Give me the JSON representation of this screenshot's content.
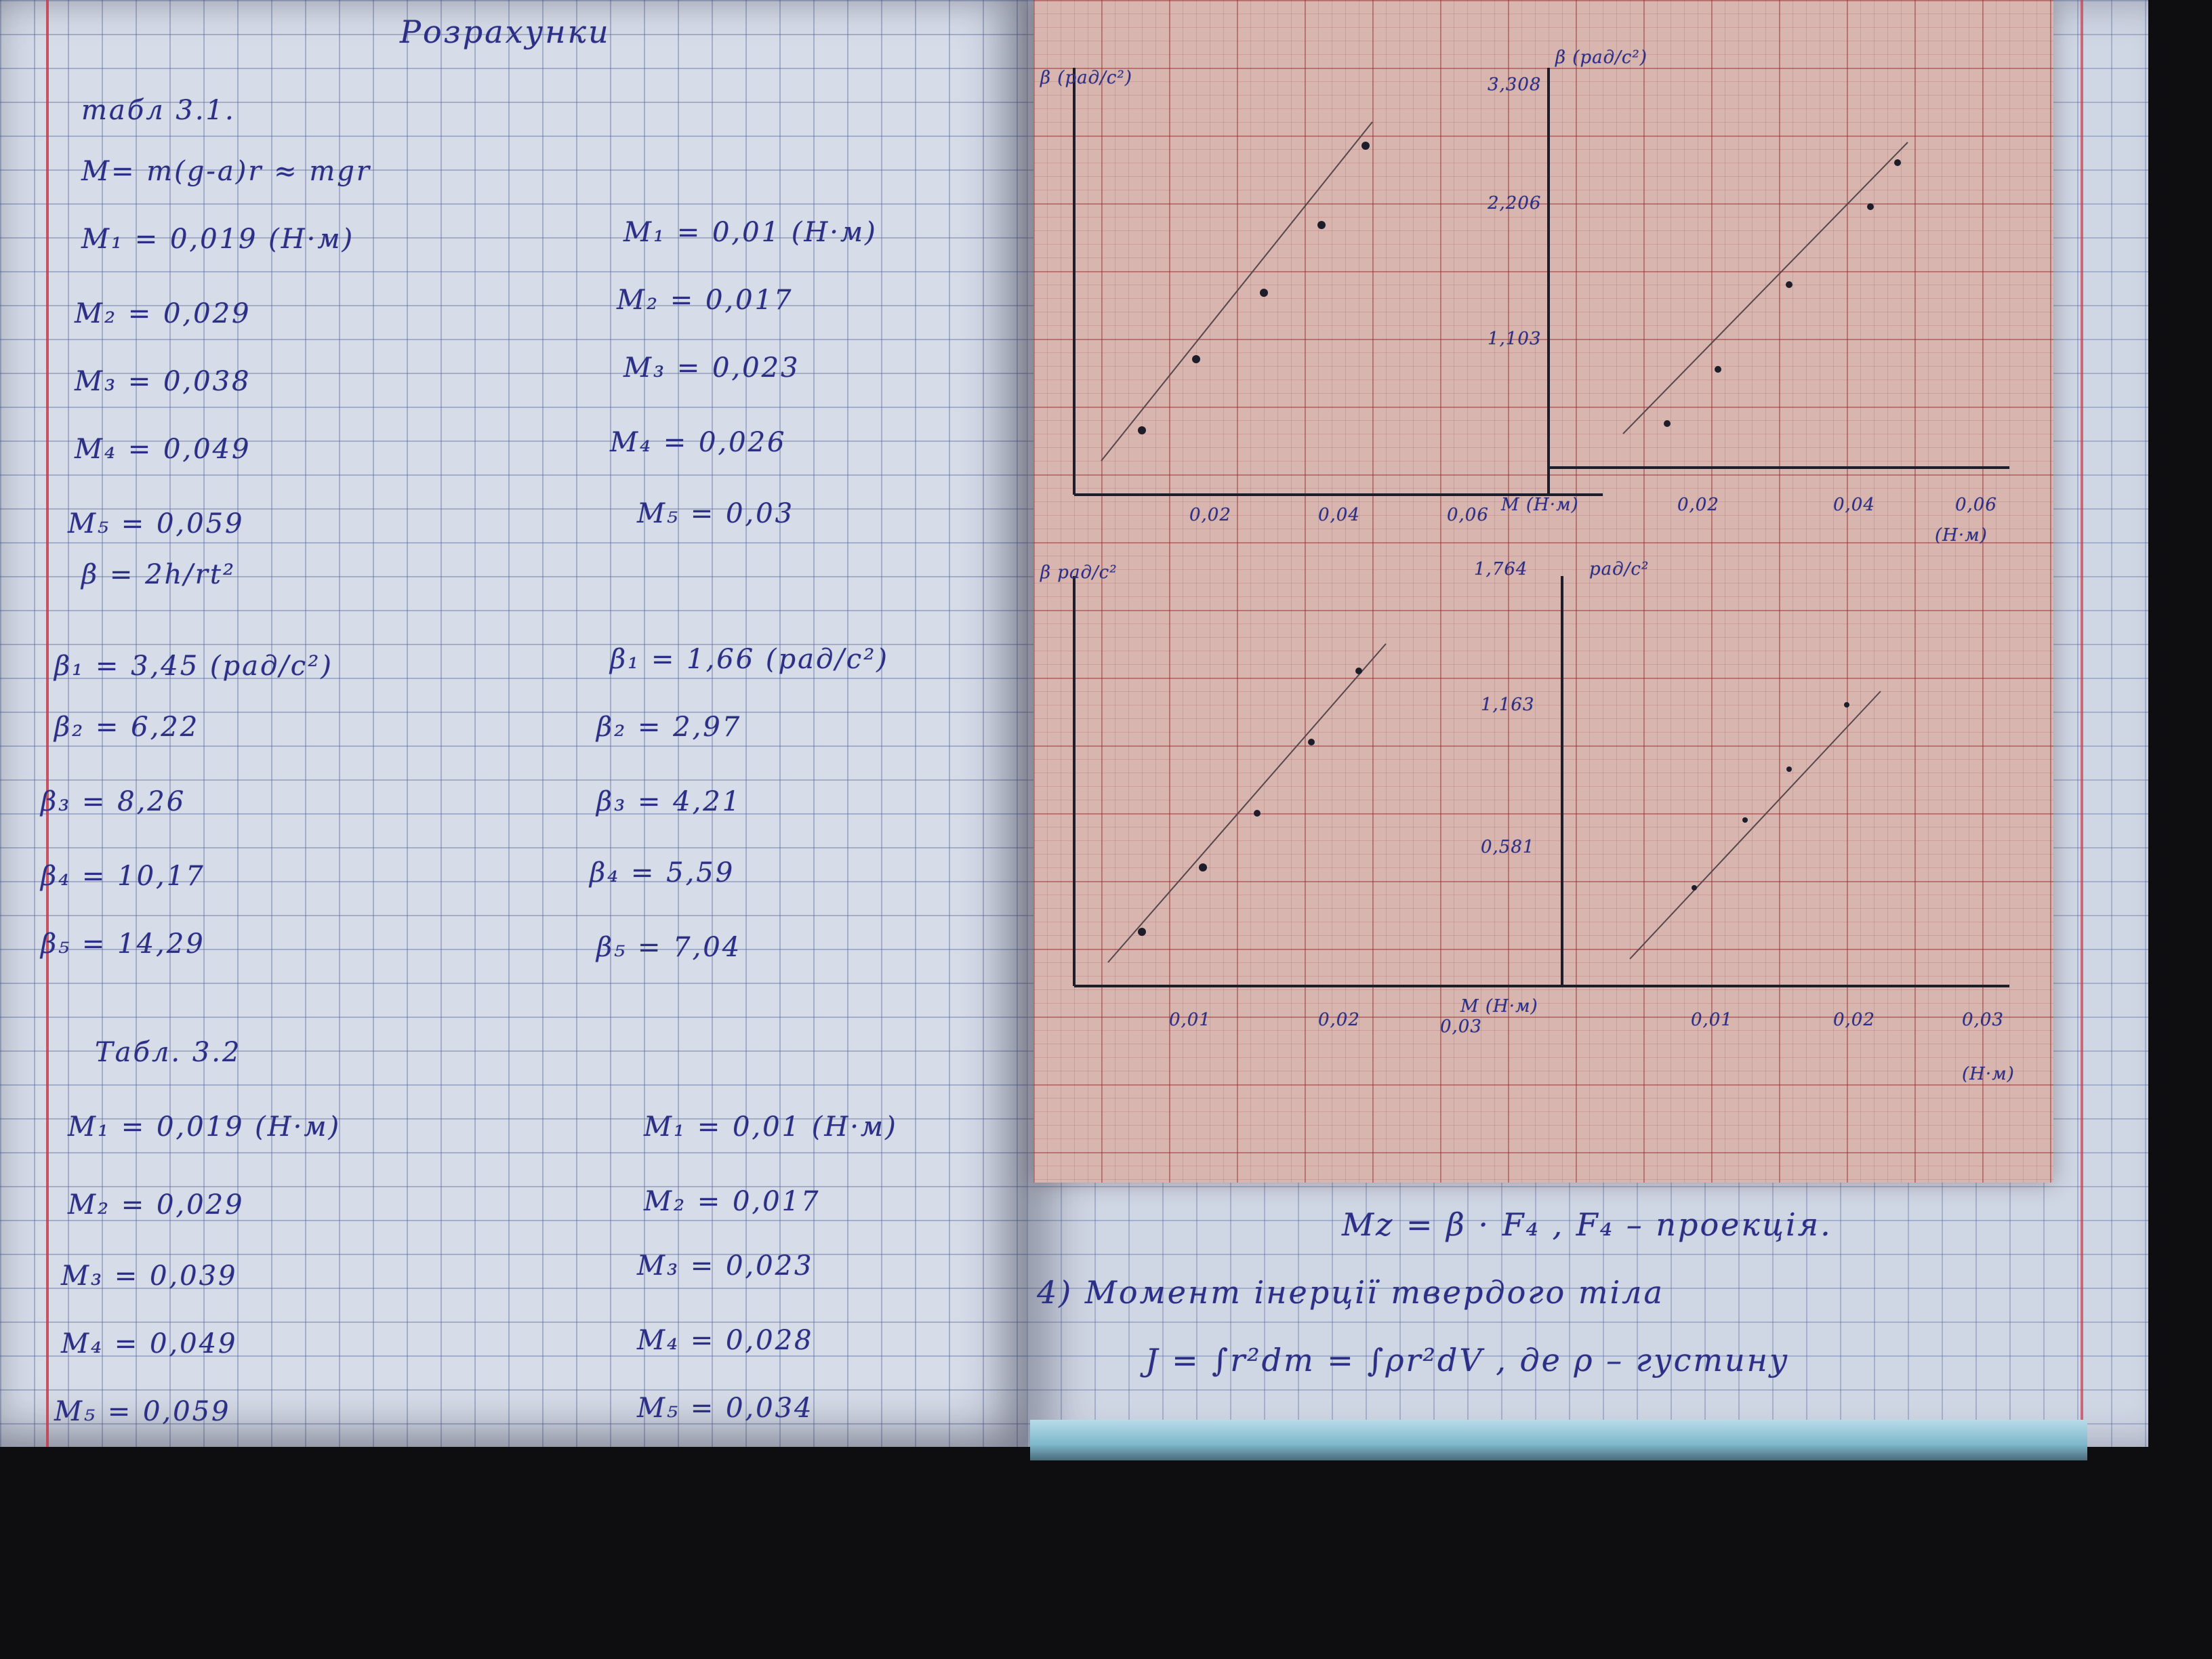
{
  "left_page": {
    "heading": "Розрахунки",
    "table1": {
      "label": "табл 3.1.",
      "formula": "M= m(g-a)r ≈ mgr",
      "col1": [
        {
          "name": "M₁",
          "value": "0,019 (Н·м)"
        },
        {
          "name": "M₂",
          "value": "0,029"
        },
        {
          "name": "M₃",
          "value": "0,038"
        },
        {
          "name": "M₄",
          "value": "0,049"
        },
        {
          "name": "M₅",
          "value": "0,059"
        }
      ],
      "col2": [
        {
          "name": "M₁",
          "value": "0,01 (Н·м)"
        },
        {
          "name": "M₂",
          "value": "0,017"
        },
        {
          "name": "M₃",
          "value": "0,023"
        },
        {
          "name": "M₄",
          "value": "0,026"
        },
        {
          "name": "M₅",
          "value": "0,03"
        }
      ],
      "beta_formula": "β = 2h/rt²",
      "beta_col1": [
        {
          "name": "β₁",
          "value": "3,45 (рад/с²)"
        },
        {
          "name": "β₂",
          "value": "6,22"
        },
        {
          "name": "β₃",
          "value": "8,26"
        },
        {
          "name": "β₄",
          "value": "10,17"
        },
        {
          "name": "β₅",
          "value": "14,29"
        }
      ],
      "beta_col2": [
        {
          "name": "β₁",
          "value": "1,66 (рад/с²)"
        },
        {
          "name": "β₂",
          "value": "2,97"
        },
        {
          "name": "β₃",
          "value": "4,21"
        },
        {
          "name": "β₄",
          "value": "5,59"
        },
        {
          "name": "β₅",
          "value": "7,04"
        }
      ]
    },
    "table2": {
      "label": "Табл. 3.2",
      "col1": [
        {
          "name": "M₁",
          "value": "0,019 (Н·м)"
        },
        {
          "name": "M₂",
          "value": "0,029"
        },
        {
          "name": "M₃",
          "value": "0,039"
        },
        {
          "name": "M₄",
          "value": "0,049"
        },
        {
          "name": "M₅",
          "value": "0,059"
        }
      ],
      "col2": [
        {
          "name": "M₁",
          "value": "0,01 (Н·м)"
        },
        {
          "name": "M₂",
          "value": "0,017"
        },
        {
          "name": "M₃",
          "value": "0,023"
        },
        {
          "name": "M₄",
          "value": "0,028"
        },
        {
          "name": "M₅",
          "value": "0,034"
        }
      ]
    }
  },
  "graphs": {
    "tl": {
      "ylabel": "β (рад/с²)",
      "xticks": [
        "0,02",
        "0,04",
        "0,06"
      ],
      "xunit": "M (Н·м)"
    },
    "tr": {
      "ylabel": "β (рад/с²)",
      "yticks": [
        "3,308",
        "2,206",
        "1,103"
      ],
      "xticks": [
        "0,02",
        "0,04",
        "0,06"
      ],
      "xunit": "(Н·м)"
    },
    "bl": {
      "ylabel": "β рад/с²",
      "xticks": [
        "0,01",
        "0,02",
        "0,03"
      ],
      "xunit": "M (Н·м)"
    },
    "br": {
      "ylabel": "рад/с²",
      "yticks": [
        "1,764",
        "1,163",
        "0,581"
      ],
      "xticks": [
        "0,01",
        "0,02",
        "0,03"
      ],
      "xunit": "(Н·м)"
    }
  },
  "right_page": {
    "line1": "Mz = β · F₄ ,   F₄ – проекція.",
    "line2": "4) Момент інерції твердого тіла",
    "line3": "J = ∫r²dm = ∫ρr²dV , де ρ – густину"
  },
  "colors": {
    "ink": "#2c2f86",
    "graph_paper": "#d9b5b0",
    "notebook_grid": "#d6dce8"
  }
}
